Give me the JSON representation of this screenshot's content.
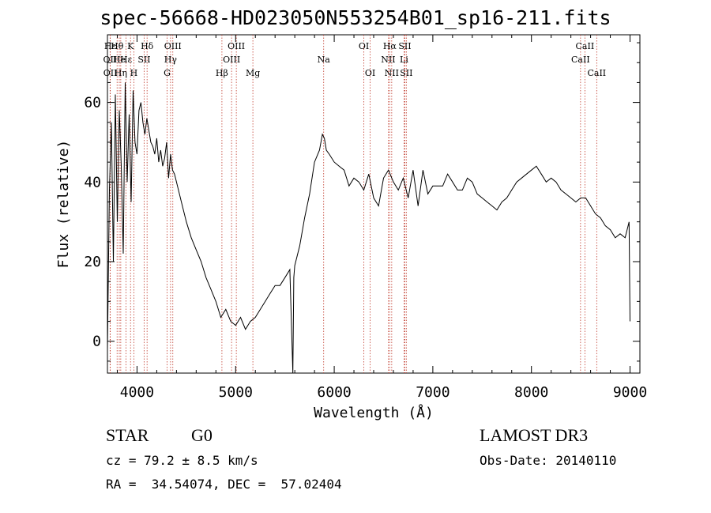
{
  "title": "spec-56668-HD023050N553254B01_sp16-211.fits",
  "info": {
    "object_class": "STAR",
    "subclass": "G0",
    "survey": "LAMOST DR3",
    "cz": "cz = 79.2 ± 8.5 km/s",
    "obs_date": "Obs-Date: 20140110",
    "coords": "RA =  34.54074, DEC =  57.02404"
  },
  "chart_data": {
    "type": "line",
    "title": "spec-56668-HD023050N553254B01_sp16-211.fits",
    "xlabel": "Wavelength (Å)",
    "ylabel": "Flux (relative)",
    "xlim": [
      3700,
      9100
    ],
    "ylim": [
      -8,
      77
    ],
    "x_ticks": [
      4000,
      5000,
      6000,
      7000,
      8000,
      9000
    ],
    "y_ticks": [
      0,
      20,
      40,
      60
    ],
    "grid": false,
    "line_color": "#000000",
    "marker_color": "#c0392b",
    "series": [
      {
        "x": [
          3700,
          3720,
          3740,
          3760,
          3780,
          3800,
          3820,
          3840,
          3860,
          3880,
          3900,
          3920,
          3940,
          3960,
          3980,
          4000,
          4020,
          4040,
          4060,
          4080,
          4100,
          4120,
          4140,
          4160,
          4180,
          4200,
          4220,
          4240,
          4260,
          4280,
          4300,
          4320,
          4340,
          4360,
          4380,
          4400,
          4450,
          4500,
          4550,
          4600,
          4650,
          4700,
          4750,
          4800,
          4850,
          4900,
          4950,
          5000,
          5050,
          5100,
          5150,
          5200,
          5250,
          5300,
          5350,
          5400,
          5450,
          5500,
          5550,
          5580,
          5590,
          5600,
          5650,
          5700,
          5750,
          5800,
          5850,
          5880,
          5900,
          5920,
          5950,
          6000,
          6050,
          6100,
          6150,
          6200,
          6250,
          6300,
          6350,
          6400,
          6450,
          6500,
          6550,
          6600,
          6650,
          6700,
          6750,
          6800,
          6850,
          6900,
          6950,
          7000,
          7050,
          7100,
          7150,
          7200,
          7250,
          7300,
          7350,
          7400,
          7450,
          7500,
          7550,
          7600,
          7650,
          7700,
          7750,
          7800,
          7850,
          7900,
          7950,
          8000,
          8050,
          8100,
          8150,
          8200,
          8250,
          8300,
          8350,
          8400,
          8450,
          8500,
          8550,
          8600,
          8650,
          8700,
          8750,
          8800,
          8850,
          8900,
          8950,
          8990,
          9000
        ],
        "y": [
          -2,
          38,
          55,
          20,
          62,
          30,
          58,
          44,
          22,
          65,
          40,
          57,
          35,
          63,
          50,
          47,
          58,
          60,
          55,
          52,
          56,
          53,
          50,
          49,
          47,
          51,
          45,
          48,
          44,
          46,
          50,
          41,
          47,
          43,
          42,
          40,
          35,
          30,
          26,
          23,
          20,
          16,
          13,
          10,
          6,
          8,
          5,
          4,
          6,
          3,
          5,
          6,
          8,
          10,
          12,
          14,
          14,
          16,
          18,
          -8,
          16,
          19,
          24,
          31,
          37,
          45,
          48,
          52,
          51,
          48,
          47,
          45,
          44,
          43,
          39,
          41,
          40,
          38,
          42,
          36,
          34,
          41,
          43,
          40,
          38,
          41,
          36,
          43,
          34,
          43,
          37,
          39,
          39,
          39,
          42,
          40,
          38,
          38,
          41,
          40,
          37,
          36,
          35,
          34,
          33,
          35,
          36,
          38,
          40,
          41,
          42,
          43,
          44,
          42,
          40,
          41,
          40,
          38,
          37,
          36,
          35,
          36,
          36,
          34,
          32,
          31,
          29,
          28,
          26,
          27,
          26,
          30,
          5
        ]
      }
    ],
    "line_markers": [
      {
        "label": "Hε",
        "x": 3728,
        "row": 1
      },
      {
        "label": "OII",
        "x": 3727,
        "row": 2
      },
      {
        "label": "OII",
        "x": 3729,
        "row": 3
      },
      {
        "label": "Hθ",
        "x": 3798,
        "row": 1
      },
      {
        "label": "He",
        "x": 3820,
        "row": 2
      },
      {
        "label": "Hη",
        "x": 3835,
        "row": 3
      },
      {
        "label": "K",
        "x": 3934,
        "row": 1
      },
      {
        "label": "Hε",
        "x": 3889,
        "row": 2
      },
      {
        "label": "H",
        "x": 3968,
        "row": 3
      },
      {
        "label": "Hδ",
        "x": 4102,
        "row": 1
      },
      {
        "label": "SII",
        "x": 4072,
        "row": 2
      },
      {
        "label": "OIII",
        "x": 4363,
        "row": 1
      },
      {
        "label": "Hγ",
        "x": 4340,
        "row": 2
      },
      {
        "label": "G",
        "x": 4305,
        "row": 3
      },
      {
        "label": "OIII",
        "x": 5007,
        "row": 1
      },
      {
        "label": "OIII",
        "x": 4959,
        "row": 2
      },
      {
        "label": "Hβ",
        "x": 4861,
        "row": 3
      },
      {
        "label": "Mg",
        "x": 5175,
        "row": 3
      },
      {
        "label": "Na",
        "x": 5893,
        "row": 2
      },
      {
        "label": "OI",
        "x": 6300,
        "row": 1
      },
      {
        "label": "OI",
        "x": 6364,
        "row": 3
      },
      {
        "label": "Hα",
        "x": 6563,
        "row": 1
      },
      {
        "label": "SII",
        "x": 6716,
        "row": 1
      },
      {
        "label": "NII",
        "x": 6548,
        "row": 2
      },
      {
        "label": "Li",
        "x": 6708,
        "row": 2
      },
      {
        "label": "NII",
        "x": 6583,
        "row": 3
      },
      {
        "label": "SII",
        "x": 6731,
        "row": 3
      },
      {
        "label": "CaII",
        "x": 8542,
        "row": 1
      },
      {
        "label": "CaII",
        "x": 8498,
        "row": 2
      },
      {
        "label": "CaII",
        "x": 8662,
        "row": 3
      }
    ]
  }
}
